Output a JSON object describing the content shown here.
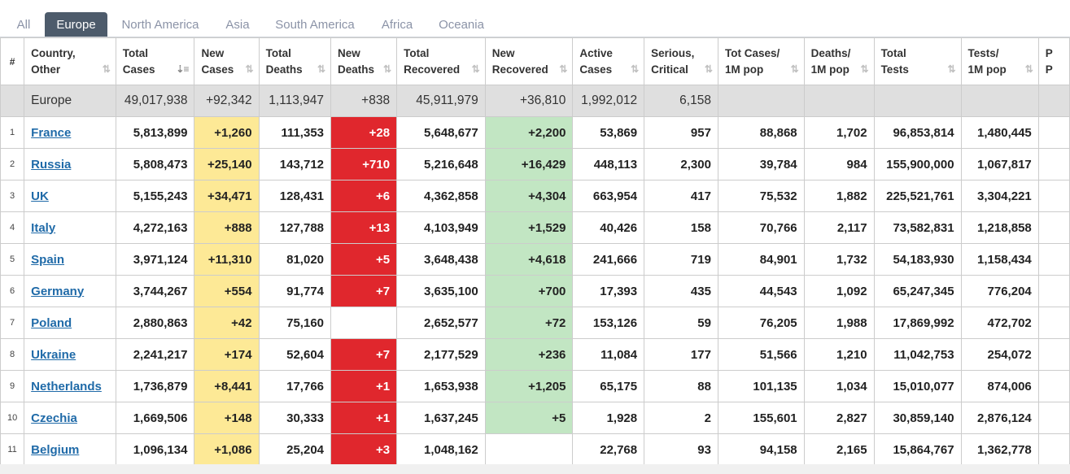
{
  "tabs": [
    {
      "label": "All"
    },
    {
      "label": "Europe",
      "active": true
    },
    {
      "label": "North America"
    },
    {
      "label": "Asia"
    },
    {
      "label": "South America"
    },
    {
      "label": "Africa"
    },
    {
      "label": "Oceania"
    }
  ],
  "columns": [
    {
      "l1": "#",
      "l2": ""
    },
    {
      "l1": "Country,",
      "l2": "Other"
    },
    {
      "l1": "Total",
      "l2": "Cases"
    },
    {
      "l1": "New",
      "l2": "Cases"
    },
    {
      "l1": "Total",
      "l2": "Deaths"
    },
    {
      "l1": "New",
      "l2": "Deaths"
    },
    {
      "l1": "Total",
      "l2": "Recovered"
    },
    {
      "l1": "New",
      "l2": "Recovered"
    },
    {
      "l1": "Active",
      "l2": "Cases"
    },
    {
      "l1": "Serious,",
      "l2": "Critical"
    },
    {
      "l1": "Tot Cases/",
      "l2": "1M pop"
    },
    {
      "l1": "Deaths/",
      "l2": "1M pop"
    },
    {
      "l1": "Total",
      "l2": "Tests"
    },
    {
      "l1": "Tests/",
      "l2": "1M pop"
    },
    {
      "l1": "P",
      "l2": "P"
    }
  ],
  "sort_icon": "⇅",
  "sort_icon_active": "⇣≡",
  "total_row": {
    "country": "Europe",
    "total_cases": "49,017,938",
    "new_cases": "+92,342",
    "total_deaths": "1,113,947",
    "new_deaths": "+838",
    "total_recovered": "45,911,979",
    "new_recovered": "+36,810",
    "active_cases": "1,992,012",
    "serious": "6,158",
    "cases_per_m": "",
    "deaths_per_m": "",
    "total_tests": "",
    "tests_per_m": ""
  },
  "rows": [
    {
      "num": "1",
      "country": "France",
      "total_cases": "5,813,899",
      "new_cases": "+1,260",
      "total_deaths": "111,353",
      "new_deaths": "+28",
      "total_recovered": "5,648,677",
      "new_recovered": "+2,200",
      "active_cases": "53,869",
      "serious": "957",
      "cases_per_m": "88,868",
      "deaths_per_m": "1,702",
      "total_tests": "96,853,814",
      "tests_per_m": "1,480,445"
    },
    {
      "num": "2",
      "country": "Russia",
      "total_cases": "5,808,473",
      "new_cases": "+25,140",
      "total_deaths": "143,712",
      "new_deaths": "+710",
      "total_recovered": "5,216,648",
      "new_recovered": "+16,429",
      "active_cases": "448,113",
      "serious": "2,300",
      "cases_per_m": "39,784",
      "deaths_per_m": "984",
      "total_tests": "155,900,000",
      "tests_per_m": "1,067,817"
    },
    {
      "num": "3",
      "country": "UK",
      "total_cases": "5,155,243",
      "new_cases": "+34,471",
      "total_deaths": "128,431",
      "new_deaths": "+6",
      "total_recovered": "4,362,858",
      "new_recovered": "+4,304",
      "active_cases": "663,954",
      "serious": "417",
      "cases_per_m": "75,532",
      "deaths_per_m": "1,882",
      "total_tests": "225,521,761",
      "tests_per_m": "3,304,221"
    },
    {
      "num": "4",
      "country": "Italy",
      "total_cases": "4,272,163",
      "new_cases": "+888",
      "total_deaths": "127,788",
      "new_deaths": "+13",
      "total_recovered": "4,103,949",
      "new_recovered": "+1,529",
      "active_cases": "40,426",
      "serious": "158",
      "cases_per_m": "70,766",
      "deaths_per_m": "2,117",
      "total_tests": "73,582,831",
      "tests_per_m": "1,218,858"
    },
    {
      "num": "5",
      "country": "Spain",
      "total_cases": "3,971,124",
      "new_cases": "+11,310",
      "total_deaths": "81,020",
      "new_deaths": "+5",
      "total_recovered": "3,648,438",
      "new_recovered": "+4,618",
      "active_cases": "241,666",
      "serious": "719",
      "cases_per_m": "84,901",
      "deaths_per_m": "1,732",
      "total_tests": "54,183,930",
      "tests_per_m": "1,158,434"
    },
    {
      "num": "6",
      "country": "Germany",
      "total_cases": "3,744,267",
      "new_cases": "+554",
      "total_deaths": "91,774",
      "new_deaths": "+7",
      "total_recovered": "3,635,100",
      "new_recovered": "+700",
      "active_cases": "17,393",
      "serious": "435",
      "cases_per_m": "44,543",
      "deaths_per_m": "1,092",
      "total_tests": "65,247,345",
      "tests_per_m": "776,204"
    },
    {
      "num": "7",
      "country": "Poland",
      "total_cases": "2,880,863",
      "new_cases": "+42",
      "total_deaths": "75,160",
      "new_deaths": "",
      "total_recovered": "2,652,577",
      "new_recovered": "+72",
      "active_cases": "153,126",
      "serious": "59",
      "cases_per_m": "76,205",
      "deaths_per_m": "1,988",
      "total_tests": "17,869,992",
      "tests_per_m": "472,702"
    },
    {
      "num": "8",
      "country": "Ukraine",
      "total_cases": "2,241,217",
      "new_cases": "+174",
      "total_deaths": "52,604",
      "new_deaths": "+7",
      "total_recovered": "2,177,529",
      "new_recovered": "+236",
      "active_cases": "11,084",
      "serious": "177",
      "cases_per_m": "51,566",
      "deaths_per_m": "1,210",
      "total_tests": "11,042,753",
      "tests_per_m": "254,072"
    },
    {
      "num": "9",
      "country": "Netherlands",
      "total_cases": "1,736,879",
      "new_cases": "+8,441",
      "total_deaths": "17,766",
      "new_deaths": "+1",
      "total_recovered": "1,653,938",
      "new_recovered": "+1,205",
      "active_cases": "65,175",
      "serious": "88",
      "cases_per_m": "101,135",
      "deaths_per_m": "1,034",
      "total_tests": "15,010,077",
      "tests_per_m": "874,006"
    },
    {
      "num": "10",
      "country": "Czechia",
      "total_cases": "1,669,506",
      "new_cases": "+148",
      "total_deaths": "30,333",
      "new_deaths": "+1",
      "total_recovered": "1,637,245",
      "new_recovered": "+5",
      "active_cases": "1,928",
      "serious": "2",
      "cases_per_m": "155,601",
      "deaths_per_m": "2,827",
      "total_tests": "30,859,140",
      "tests_per_m": "2,876,124"
    },
    {
      "num": "11",
      "country": "Belgium",
      "total_cases": "1,096,134",
      "new_cases": "+1,086",
      "total_deaths": "25,204",
      "new_deaths": "+3",
      "total_recovered": "1,048,162",
      "new_recovered": "",
      "active_cases": "22,768",
      "serious": "93",
      "cases_per_m": "94,158",
      "deaths_per_m": "2,165",
      "total_tests": "15,864,767",
      "tests_per_m": "1,362,778"
    }
  ]
}
